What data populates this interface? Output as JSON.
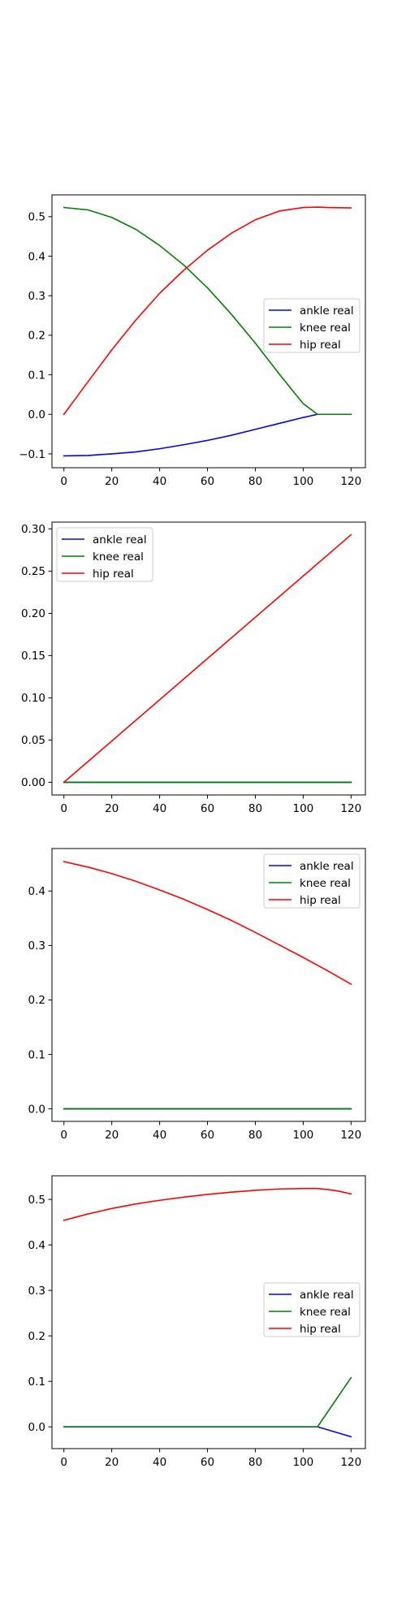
{
  "chart_data": [
    {
      "type": "line",
      "xlim": [
        -5,
        126
      ],
      "ylim": [
        -0.135,
        0.555
      ],
      "xticks": [
        0,
        20,
        40,
        60,
        80,
        100,
        120
      ],
      "xtick_labels": [
        "0",
        "20",
        "40",
        "60",
        "80",
        "100",
        "120"
      ],
      "yticks": [
        -0.1,
        0.0,
        0.1,
        0.2,
        0.3,
        0.4,
        0.5
      ],
      "ytick_labels": [
        "−0.1",
        "0.0",
        "0.1",
        "0.2",
        "0.3",
        "0.4",
        "0.5"
      ],
      "legend_position": "center-right",
      "series": [
        {
          "name": "ankle real",
          "color": "#0000ff",
          "x": [
            0,
            10,
            20,
            30,
            40,
            50,
            60,
            70,
            80,
            90,
            100,
            106,
            110,
            120
          ],
          "y": [
            -0.105,
            -0.104,
            -0.1,
            -0.095,
            -0.087,
            -0.077,
            -0.066,
            -0.053,
            -0.038,
            -0.023,
            -0.008,
            0.0,
            0.0,
            0.0
          ]
        },
        {
          "name": "knee real",
          "color": "#008000",
          "x": [
            0,
            10,
            20,
            30,
            40,
            50,
            60,
            70,
            80,
            90,
            100,
            106,
            110,
            120
          ],
          "y": [
            0.523,
            0.517,
            0.498,
            0.468,
            0.427,
            0.378,
            0.32,
            0.253,
            0.18,
            0.102,
            0.027,
            0.0,
            0.0,
            0.0
          ]
        },
        {
          "name": "hip real",
          "color": "#ff0000",
          "x": [
            0,
            10,
            20,
            30,
            40,
            50,
            60,
            70,
            80,
            90,
            100,
            106,
            110,
            120
          ],
          "y": [
            0.0,
            0.082,
            0.163,
            0.238,
            0.306,
            0.364,
            0.415,
            0.458,
            0.492,
            0.514,
            0.523,
            0.524,
            0.523,
            0.522
          ]
        }
      ]
    },
    {
      "type": "line",
      "xlim": [
        -5,
        126
      ],
      "ylim": [
        -0.015,
        0.308
      ],
      "xticks": [
        0,
        20,
        40,
        60,
        80,
        100,
        120
      ],
      "xtick_labels": [
        "0",
        "20",
        "40",
        "60",
        "80",
        "100",
        "120"
      ],
      "yticks": [
        0.0,
        0.05,
        0.1,
        0.15,
        0.2,
        0.25,
        0.3
      ],
      "ytick_labels": [
        "0.00",
        "0.05",
        "0.10",
        "0.15",
        "0.20",
        "0.25",
        "0.30"
      ],
      "legend_position": "upper-left",
      "series": [
        {
          "name": "ankle real",
          "color": "#0000ff",
          "x": [
            0,
            120
          ],
          "y": [
            0.0,
            0.0
          ]
        },
        {
          "name": "knee real",
          "color": "#008000",
          "x": [
            0,
            120
          ],
          "y": [
            0.0,
            0.0
          ]
        },
        {
          "name": "hip real",
          "color": "#ff0000",
          "x": [
            0,
            120
          ],
          "y": [
            0.0,
            0.293
          ]
        }
      ]
    },
    {
      "type": "line",
      "xlim": [
        -5,
        126
      ],
      "ylim": [
        -0.023,
        0.478
      ],
      "xticks": [
        0,
        20,
        40,
        60,
        80,
        100,
        120
      ],
      "xtick_labels": [
        "0",
        "20",
        "40",
        "60",
        "80",
        "100",
        "120"
      ],
      "yticks": [
        0.0,
        0.1,
        0.2,
        0.3,
        0.4
      ],
      "ytick_labels": [
        "0.0",
        "0.1",
        "0.2",
        "0.3",
        "0.4"
      ],
      "legend_position": "upper-right",
      "series": [
        {
          "name": "ankle real",
          "color": "#0000ff",
          "x": [
            0,
            120
          ],
          "y": [
            0.0,
            0.0
          ]
        },
        {
          "name": "knee real",
          "color": "#008000",
          "x": [
            0,
            120
          ],
          "y": [
            0.0,
            0.0
          ]
        },
        {
          "name": "hip real",
          "color": "#ff0000",
          "x": [
            0,
            10,
            20,
            30,
            40,
            50,
            60,
            70,
            80,
            90,
            100,
            110,
            120
          ],
          "y": [
            0.454,
            0.444,
            0.432,
            0.418,
            0.402,
            0.385,
            0.366,
            0.346,
            0.324,
            0.301,
            0.278,
            0.254,
            0.229
          ]
        }
      ]
    },
    {
      "type": "line",
      "xlim": [
        -5,
        126
      ],
      "ylim": [
        -0.048,
        0.552
      ],
      "xticks": [
        0,
        20,
        40,
        60,
        80,
        100,
        120
      ],
      "xtick_labels": [
        "0",
        "20",
        "40",
        "60",
        "80",
        "100",
        "120"
      ],
      "yticks": [
        0.0,
        0.1,
        0.2,
        0.3,
        0.4,
        0.5
      ],
      "ytick_labels": [
        "0.0",
        "0.1",
        "0.2",
        "0.3",
        "0.4",
        "0.5"
      ],
      "legend_position": "center-right",
      "series": [
        {
          "name": "ankle real",
          "color": "#0000ff",
          "x": [
            0,
            106,
            120
          ],
          "y": [
            0.0,
            0.0,
            -0.022
          ]
        },
        {
          "name": "knee real",
          "color": "#008000",
          "x": [
            0,
            106,
            120
          ],
          "y": [
            0.0,
            0.0,
            0.108
          ]
        },
        {
          "name": "hip real",
          "color": "#ff0000",
          "x": [
            0,
            10,
            20,
            30,
            40,
            50,
            60,
            70,
            80,
            90,
            100,
            106,
            110,
            115,
            120
          ],
          "y": [
            0.454,
            0.468,
            0.48,
            0.49,
            0.498,
            0.505,
            0.511,
            0.516,
            0.52,
            0.523,
            0.524,
            0.524,
            0.522,
            0.518,
            0.512
          ]
        }
      ]
    }
  ]
}
